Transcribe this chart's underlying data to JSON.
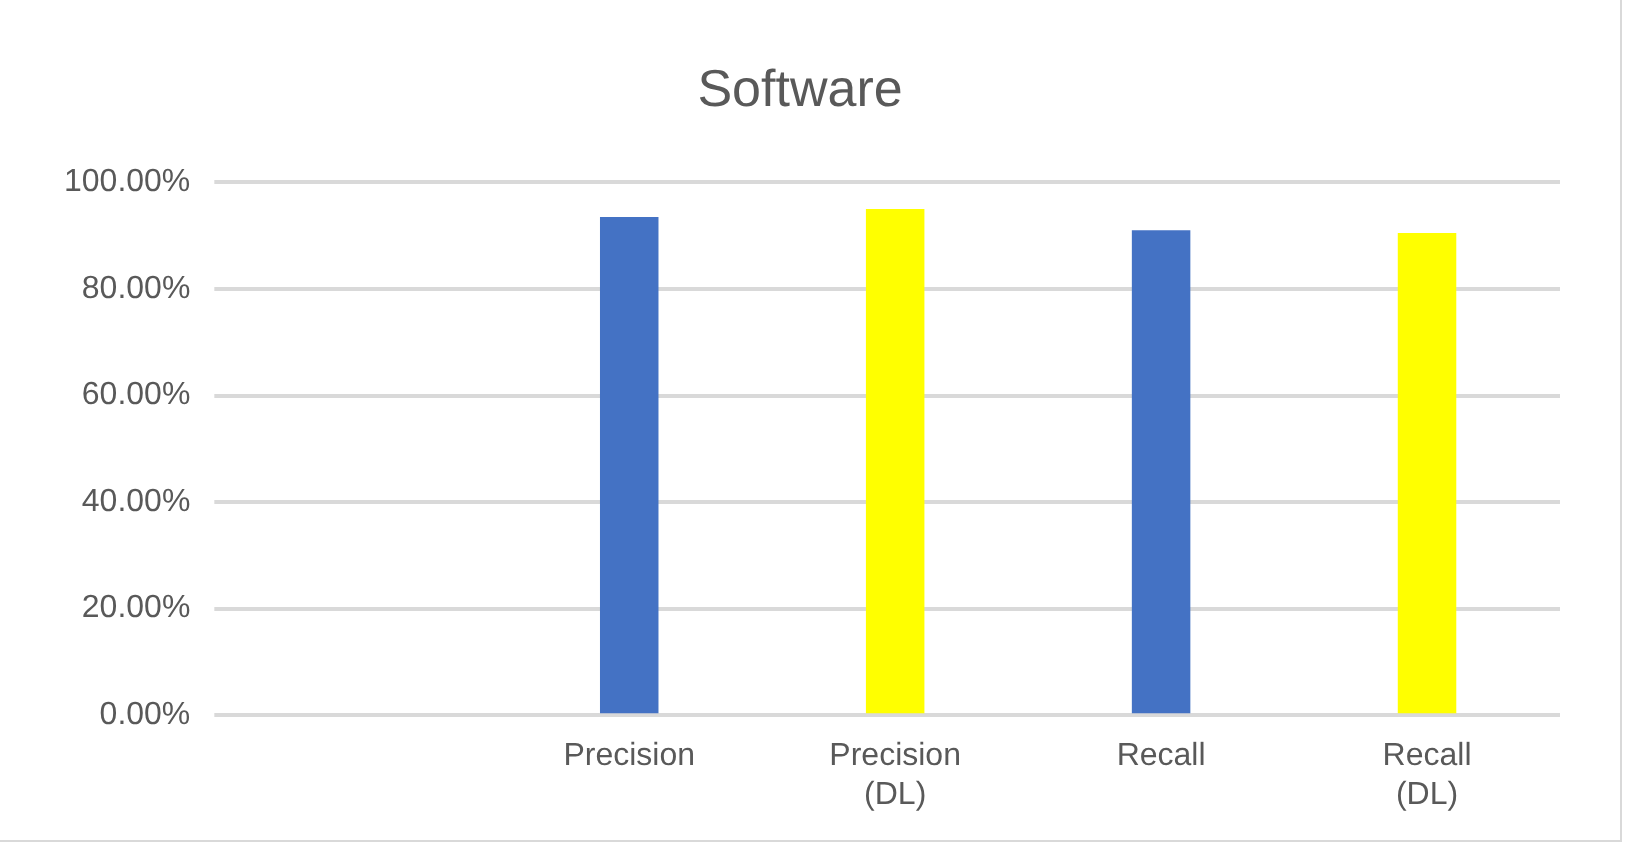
{
  "chart_data": {
    "type": "bar",
    "title": "Software",
    "categories": [
      null,
      "Precision",
      "Precision (DL)",
      "Recall",
      "Recall (DL)"
    ],
    "values": [
      null,
      93.5,
      95,
      91,
      90.5
    ],
    "colors": [
      "#4472c4",
      "#4472c4",
      "#ffff00",
      "#4472c4",
      "#ffff00"
    ],
    "ylim": [
      0,
      100
    ],
    "yticks": [
      {
        "value": 0,
        "label": "0.00%"
      },
      {
        "value": 20,
        "label": "20.00%"
      },
      {
        "value": 40,
        "label": "40.00%"
      },
      {
        "value": 60,
        "label": "60.00%"
      },
      {
        "value": 80,
        "label": "80.00%"
      },
      {
        "value": 100,
        "label": "100.00%"
      }
    ],
    "grid": "y",
    "legend": false
  }
}
